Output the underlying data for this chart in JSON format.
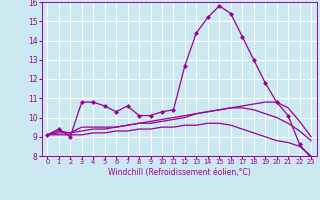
{
  "xlabel": "Windchill (Refroidissement éolien,°C)",
  "xlim": [
    -0.5,
    23.5
  ],
  "ylim": [
    8,
    16
  ],
  "yticks": [
    8,
    9,
    10,
    11,
    12,
    13,
    14,
    15,
    16
  ],
  "xticks": [
    0,
    1,
    2,
    3,
    4,
    5,
    6,
    7,
    8,
    9,
    10,
    11,
    12,
    13,
    14,
    15,
    16,
    17,
    18,
    19,
    20,
    21,
    22,
    23
  ],
  "background_color": "#cce8f0",
  "line_color": "#990099",
  "grid_color": "#ffffff",
  "series": [
    [
      9.1,
      9.4,
      9.0,
      10.8,
      10.8,
      10.6,
      10.3,
      10.6,
      10.1,
      10.1,
      10.3,
      10.4,
      12.7,
      14.4,
      15.2,
      15.8,
      15.4,
      14.2,
      13.0,
      11.8,
      10.8,
      10.1,
      8.6,
      7.9
    ],
    [
      9.1,
      9.3,
      9.2,
      9.5,
      9.5,
      9.5,
      9.5,
      9.6,
      9.7,
      9.7,
      9.8,
      9.9,
      10.0,
      10.2,
      10.3,
      10.4,
      10.5,
      10.6,
      10.7,
      10.8,
      10.8,
      10.5,
      9.8,
      9.0
    ],
    [
      9.1,
      9.2,
      9.2,
      9.3,
      9.4,
      9.4,
      9.5,
      9.6,
      9.7,
      9.8,
      9.9,
      10.0,
      10.1,
      10.2,
      10.3,
      10.4,
      10.5,
      10.5,
      10.4,
      10.2,
      10.0,
      9.7,
      9.3,
      8.8
    ],
    [
      9.1,
      9.1,
      9.1,
      9.1,
      9.2,
      9.2,
      9.3,
      9.3,
      9.4,
      9.4,
      9.5,
      9.5,
      9.6,
      9.6,
      9.7,
      9.7,
      9.6,
      9.4,
      9.2,
      9.0,
      8.8,
      8.7,
      8.5,
      8.0
    ]
  ],
  "marker_series": 0,
  "marker": "D",
  "markersize": 2.0,
  "linewidth": 0.9,
  "xlabel_fontsize": 5.5,
  "xtick_fontsize": 4.8,
  "ytick_fontsize": 5.5
}
